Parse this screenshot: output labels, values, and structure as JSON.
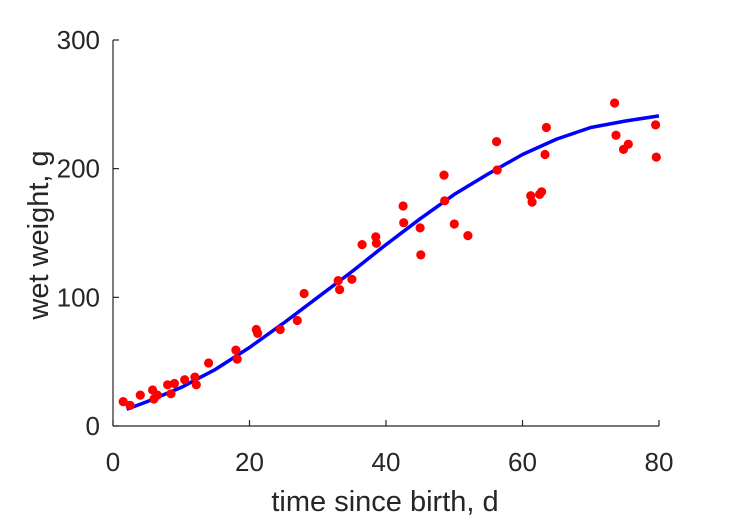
{
  "chart_data": {
    "type": "scatter",
    "xlabel": "time since birth, d",
    "ylabel": "wet weight, g",
    "xlim": [
      0,
      80
    ],
    "ylim": [
      0,
      300
    ],
    "xticks": [
      0,
      20,
      40,
      60,
      80
    ],
    "yticks": [
      0,
      100,
      200,
      300
    ],
    "grid": false,
    "box": false,
    "series": [
      {
        "kind": "scatter",
        "color": "#ff0000",
        "points": [
          [
            1.5,
            19
          ],
          [
            2.5,
            16
          ],
          [
            4,
            24
          ],
          [
            5.8,
            28
          ],
          [
            6,
            21
          ],
          [
            6.5,
            24
          ],
          [
            8,
            32
          ],
          [
            8.5,
            25
          ],
          [
            9,
            33
          ],
          [
            10.5,
            36
          ],
          [
            12,
            38
          ],
          [
            12.2,
            32
          ],
          [
            14,
            49
          ],
          [
            18,
            59
          ],
          [
            18.2,
            52
          ],
          [
            21,
            75
          ],
          [
            21.2,
            72
          ],
          [
            24.5,
            75
          ],
          [
            27,
            82
          ],
          [
            28,
            103
          ],
          [
            33,
            113
          ],
          [
            33.2,
            106
          ],
          [
            35,
            114
          ],
          [
            36.5,
            141
          ],
          [
            38.5,
            147
          ],
          [
            38.6,
            142
          ],
          [
            42.5,
            171
          ],
          [
            42.6,
            158
          ],
          [
            45,
            154
          ],
          [
            45.1,
            133
          ],
          [
            48.5,
            195
          ],
          [
            48.6,
            175
          ],
          [
            50,
            157
          ],
          [
            52,
            148
          ],
          [
            56.2,
            221
          ],
          [
            56.3,
            199
          ],
          [
            61.2,
            179
          ],
          [
            61.4,
            174
          ],
          [
            62.5,
            180
          ],
          [
            62.8,
            182
          ],
          [
            63.3,
            211
          ],
          [
            63.5,
            232
          ],
          [
            73.5,
            251
          ],
          [
            73.7,
            226
          ],
          [
            74.8,
            215
          ],
          [
            75.5,
            219
          ],
          [
            79.5,
            234
          ],
          [
            79.6,
            209
          ]
        ]
      },
      {
        "kind": "line",
        "color": "#0000ff",
        "points": [
          [
            2,
            13
          ],
          [
            5,
            19
          ],
          [
            10,
            30
          ],
          [
            15,
            44
          ],
          [
            20,
            61
          ],
          [
            25,
            80
          ],
          [
            30,
            100
          ],
          [
            35,
            120
          ],
          [
            40,
            141
          ],
          [
            45,
            161
          ],
          [
            50,
            180
          ],
          [
            55,
            196
          ],
          [
            60,
            211
          ],
          [
            65,
            223
          ],
          [
            70,
            232
          ],
          [
            75,
            237
          ],
          [
            80,
            241
          ]
        ]
      }
    ]
  }
}
